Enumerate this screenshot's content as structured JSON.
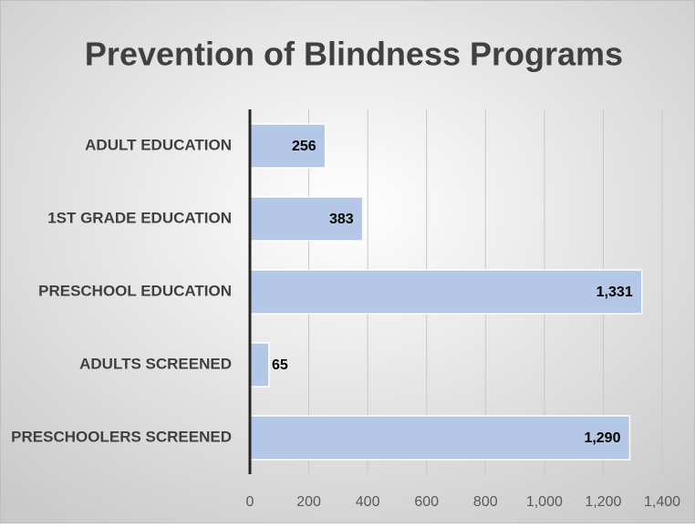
{
  "chart_data": {
    "type": "hbar",
    "title": "Prevention of Blindness Programs",
    "categories": [
      "ADULT EDUCATION",
      "1ST GRADE EDUCATION",
      "PRESCHOOL EDUCATION",
      "ADULTS SCREENED",
      "PRESCHOOLERS SCREENED"
    ],
    "values": [
      256,
      383,
      1331,
      65,
      1290
    ],
    "value_labels": [
      "256",
      "383",
      "1,331",
      "65",
      "1,290"
    ],
    "color": "#b4c7e7",
    "xlim": [
      0,
      1400
    ],
    "xticks": [
      0,
      200,
      400,
      600,
      800,
      {
        "value": 1000,
        "label": "1,000"
      },
      {
        "value": 1200,
        "label": "1,200"
      },
      {
        "value": 1400,
        "label": "1,400"
      }
    ],
    "grid": true
  }
}
